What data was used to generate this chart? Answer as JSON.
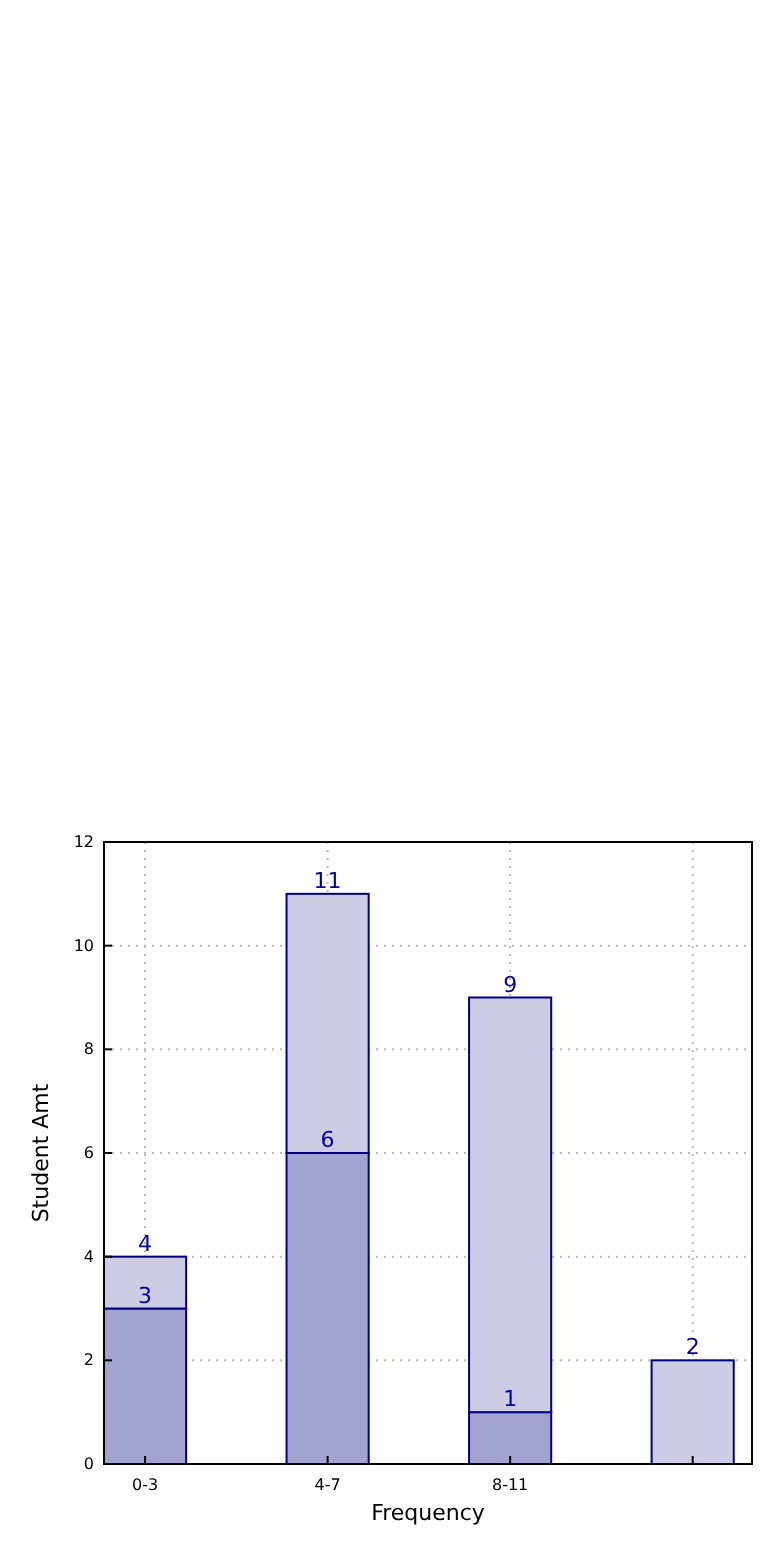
{
  "chart_data": {
    "type": "bar",
    "stacked": true,
    "xlabel": "Frequency",
    "ylabel": "Student Amt",
    "categories": [
      "0-3",
      "4-7",
      "8-11",
      null
    ],
    "series": [
      {
        "color": "#a3a3d1",
        "values": [
          3,
          6,
          1,
          null
        ],
        "value_labels": [
          "3",
          "6",
          "1",
          null
        ]
      },
      {
        "color": "#cccce4",
        "values": [
          1,
          5,
          8,
          2
        ]
      }
    ],
    "totals": [
      "4",
      "11",
      "9",
      "2"
    ],
    "ylim": [
      0,
      12
    ],
    "yticks": [
      0,
      2,
      4,
      6,
      8,
      10,
      12
    ],
    "grid": true
  }
}
